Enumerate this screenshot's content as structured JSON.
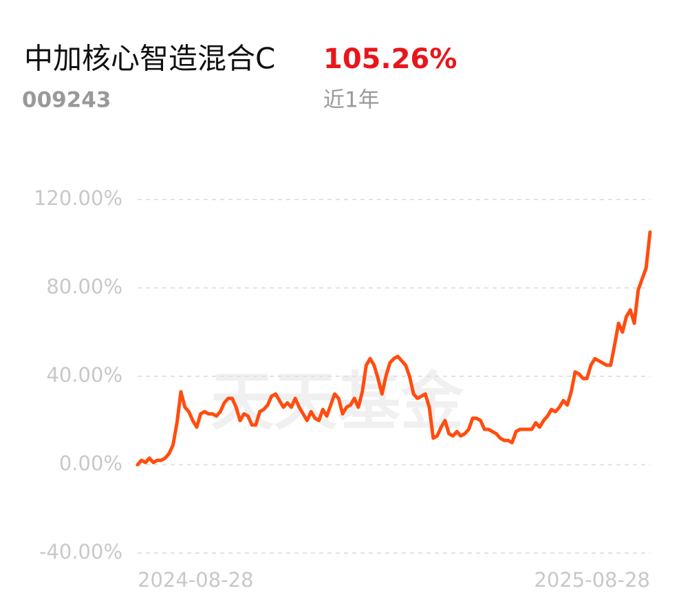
{
  "header": {
    "title": "中加核心智造混合C",
    "return": "105.26%",
    "code": "009243",
    "period": "近1年"
  },
  "chart_data": {
    "type": "line",
    "watermark": "天天基金",
    "categories": [
      "2024-08-28",
      null,
      null,
      null,
      null,
      null,
      null,
      null,
      null,
      null,
      null,
      null,
      null,
      null,
      null,
      null,
      null,
      null,
      null,
      null,
      null,
      null,
      null,
      null,
      null,
      null,
      null,
      null,
      null,
      null,
      null,
      null,
      null,
      null,
      null,
      null,
      null,
      null,
      null,
      null,
      null,
      null,
      null,
      null,
      null,
      null,
      null,
      null,
      null,
      null,
      null,
      null,
      null,
      null,
      null,
      null,
      null,
      null,
      null,
      null,
      null,
      null,
      null,
      null,
      null,
      null,
      null,
      null,
      null,
      null,
      null,
      null,
      null,
      null,
      null,
      null,
      null,
      null,
      null,
      null,
      null,
      null,
      null,
      null,
      null,
      null,
      null,
      null,
      null,
      null,
      null,
      null,
      null,
      null,
      null,
      null,
      null,
      null,
      null,
      null,
      null,
      null,
      null,
      null,
      null,
      null,
      null,
      null,
      null,
      null,
      null,
      null,
      null,
      null,
      null,
      null,
      null,
      null,
      null,
      null,
      null,
      null,
      null,
      null,
      null,
      null,
      null,
      null,
      null,
      null,
      "2025-08-28"
    ],
    "series": [
      {
        "color": "#ff4d0f",
        "values": [
          0,
          2,
          1,
          3,
          1,
          2,
          2,
          3,
          5,
          9,
          19,
          33,
          26,
          24,
          20,
          17,
          23,
          24,
          23,
          23,
          22,
          24,
          28,
          30,
          30,
          26,
          20,
          23,
          22,
          18,
          18,
          24,
          25,
          27,
          31,
          32,
          29,
          26,
          28,
          26,
          30,
          26,
          23,
          20,
          24,
          21,
          20,
          25,
          22,
          27,
          32,
          30,
          23,
          26,
          27,
          30,
          26,
          33,
          45,
          48,
          45,
          39,
          32,
          40,
          46,
          48,
          49,
          47,
          45,
          40,
          32,
          30,
          31,
          32,
          26,
          12,
          13,
          17,
          20,
          14,
          13,
          15,
          13,
          14,
          16,
          21,
          21,
          20,
          16,
          16,
          15,
          14,
          12,
          11,
          11,
          10,
          15,
          16,
          16,
          16,
          16,
          19,
          17,
          20,
          22,
          25,
          24,
          26,
          29,
          27,
          33,
          42,
          41,
          39,
          39,
          45,
          48,
          47,
          46,
          45,
          45,
          54,
          64,
          60,
          67,
          70,
          64,
          79,
          84,
          89,
          105.26
        ]
      }
    ],
    "ylim": [
      -40,
      120
    ],
    "yticks": [
      {
        "value": -40,
        "label": "-40.00%"
      },
      {
        "value": 0,
        "label": "0.00%"
      },
      {
        "value": 40,
        "label": "40.00%"
      },
      {
        "value": 80,
        "label": "80.00%"
      },
      {
        "value": 120,
        "label": "120.00%"
      }
    ],
    "grid": true
  }
}
